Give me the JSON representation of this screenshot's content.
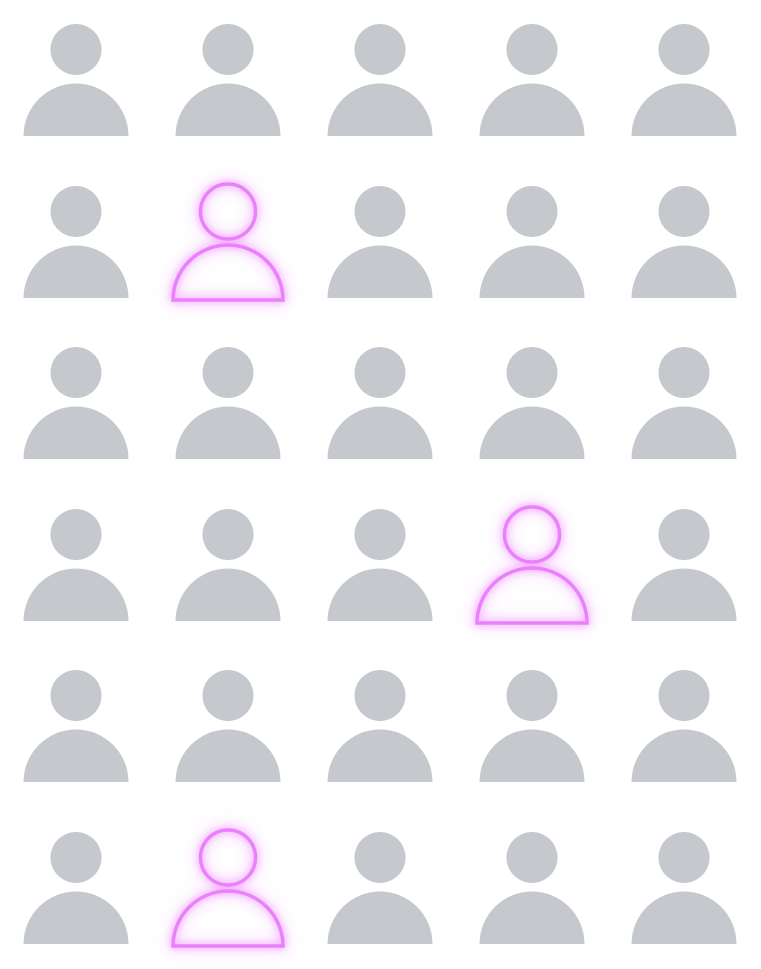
{
  "grid": {
    "rows": 6,
    "columns": 5,
    "icon": "person-icon",
    "highlighted_cells": [
      {
        "row": 2,
        "column": 2
      },
      {
        "row": 4,
        "column": 4
      },
      {
        "row": 6,
        "column": 2
      }
    ]
  },
  "colors": {
    "background": "#ffffff",
    "person_default": "#c5c8cc",
    "person_highlight": "#ea80fc"
  }
}
